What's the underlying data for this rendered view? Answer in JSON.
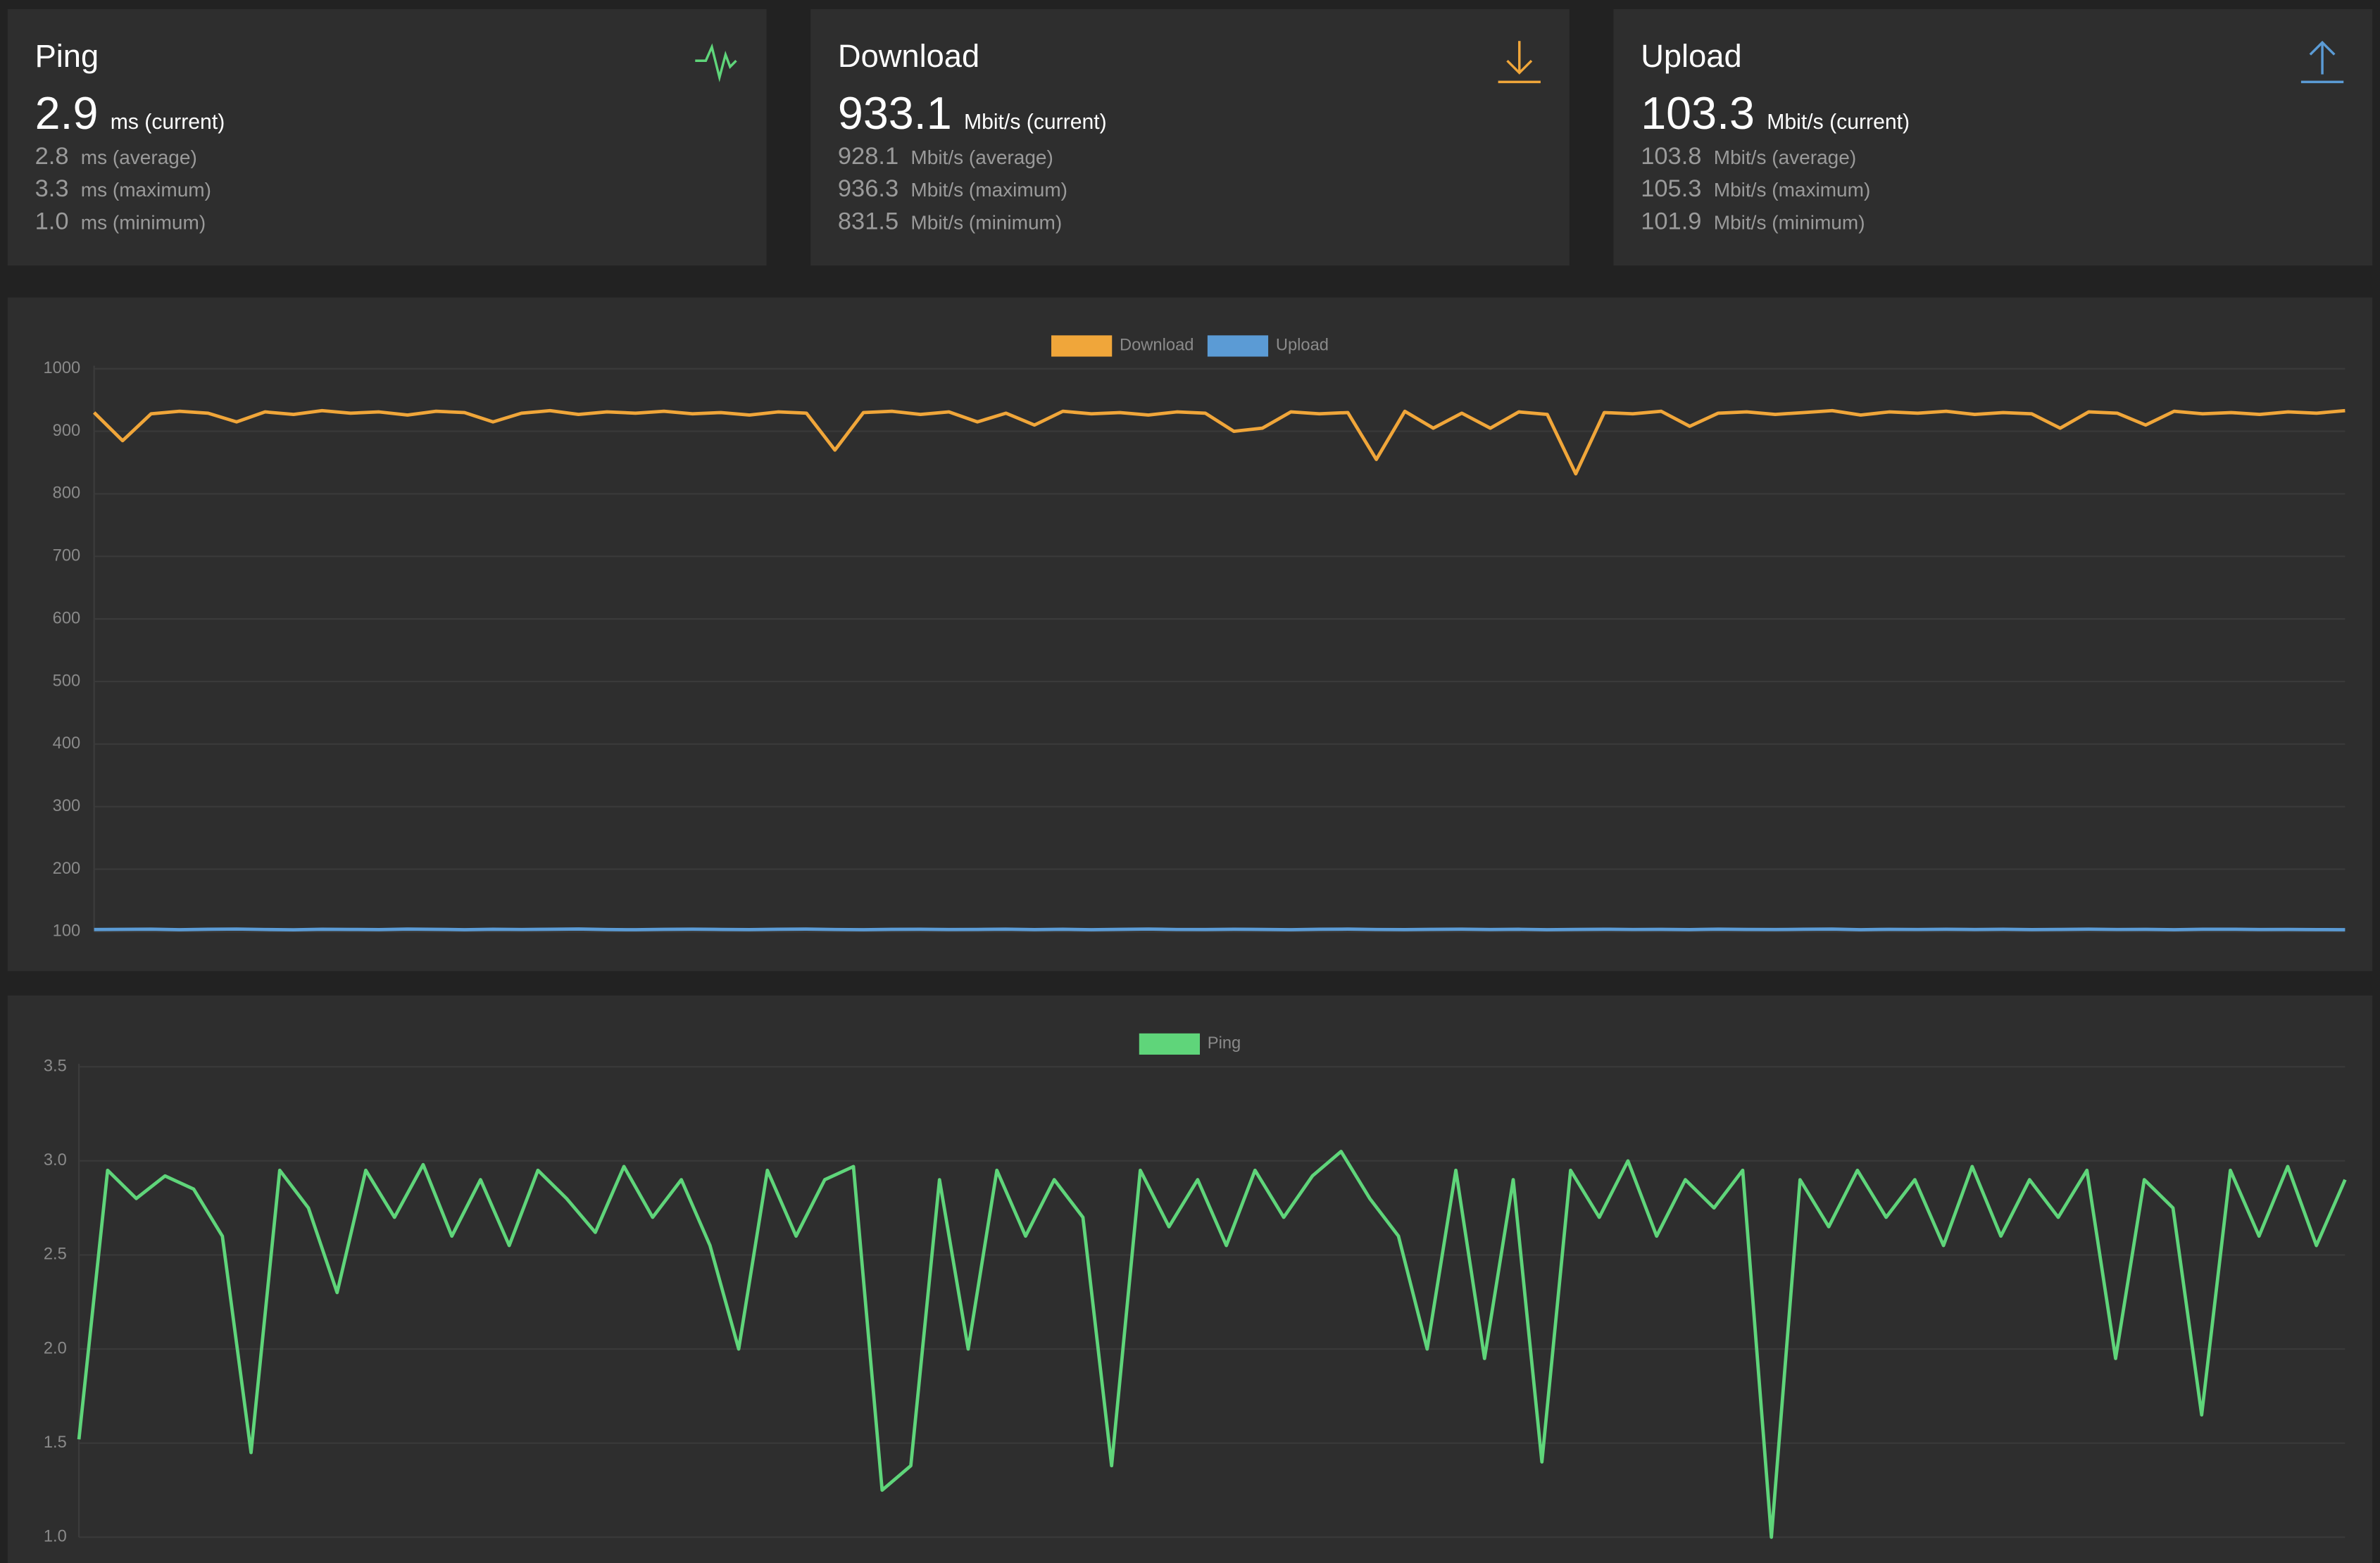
{
  "cards": [
    {
      "title": "Ping",
      "current": {
        "value": "2.9",
        "label": "ms (current)"
      },
      "stats": [
        {
          "value": "2.8",
          "label": "ms (average)"
        },
        {
          "value": "3.3",
          "label": "ms (maximum)"
        },
        {
          "value": "1.0",
          "label": "ms (minimum)"
        }
      ]
    },
    {
      "title": "Download",
      "current": {
        "value": "933.1",
        "label": "Mbit/s (current)"
      },
      "stats": [
        {
          "value": "928.1",
          "label": "Mbit/s (average)"
        },
        {
          "value": "936.3",
          "label": "Mbit/s (maximum)"
        },
        {
          "value": "831.5",
          "label": "Mbit/s (minimum)"
        }
      ]
    },
    {
      "title": "Upload",
      "current": {
        "value": "103.3",
        "label": "Mbit/s (current)"
      },
      "stats": [
        {
          "value": "103.8",
          "label": "Mbit/s (average)"
        },
        {
          "value": "105.3",
          "label": "Mbit/s (maximum)"
        },
        {
          "value": "101.9",
          "label": "Mbit/s (minimum)"
        }
      ]
    }
  ],
  "chart_data": [
    {
      "type": "line",
      "legend": "top",
      "grid": true,
      "ylim": [
        100,
        1000
      ],
      "yticks": [
        100,
        200,
        300,
        400,
        500,
        600,
        700,
        800,
        900,
        1000
      ],
      "series": [
        {
          "name": "Download",
          "color": "#f0a63a",
          "values": [
            930,
            885,
            928,
            932,
            929,
            915,
            931,
            927,
            933,
            929,
            931,
            926,
            932,
            930,
            915,
            929,
            933,
            927,
            931,
            929,
            932,
            928,
            930,
            926,
            931,
            929,
            870,
            930,
            932,
            927,
            931,
            915,
            929,
            910,
            932,
            928,
            930,
            926,
            931,
            929,
            900,
            905,
            931,
            928,
            930,
            855,
            932,
            905,
            929,
            905,
            931,
            927,
            832,
            930,
            928,
            932,
            908,
            929,
            931,
            927,
            930,
            933,
            926,
            931,
            929,
            932,
            927,
            930,
            928,
            905,
            931,
            929,
            910,
            932,
            928,
            930,
            927,
            931,
            929,
            933
          ]
        },
        {
          "name": "Upload",
          "color": "#5b9bd5",
          "values": [
            103.5,
            103.8,
            104.1,
            103.2,
            103.9,
            104.3,
            103.6,
            103.1,
            104.0,
            103.7,
            103.4,
            104.2,
            103.8,
            103.3,
            104.0,
            103.6,
            103.9,
            104.4,
            103.5,
            103.2,
            103.8,
            104.1,
            103.7,
            103.4,
            103.9,
            104.2,
            103.6,
            103.3,
            103.8,
            104.0,
            103.5,
            103.7,
            104.1,
            103.4,
            103.9,
            103.2,
            103.8,
            104.3,
            103.6,
            103.5,
            104.0,
            103.7,
            103.3,
            103.9,
            104.2,
            103.6,
            103.4,
            103.8,
            104.1,
            103.5,
            103.9,
            103.2,
            103.7,
            104.0,
            103.6,
            103.8,
            103.4,
            104.1,
            103.7,
            103.5,
            103.9,
            104.2,
            103.3,
            103.8,
            103.6,
            104.0,
            103.5,
            103.9,
            103.4,
            103.7,
            104.1,
            103.6,
            103.8,
            103.3,
            103.9,
            104.0,
            103.5,
            103.7,
            103.4,
            103.3
          ]
        }
      ]
    },
    {
      "type": "line",
      "legend": "top",
      "grid": true,
      "ylim": [
        1,
        3.5
      ],
      "yticks": [
        {
          "value": 1,
          "label": "1.0"
        },
        1.5,
        {
          "value": 2,
          "label": "2.0"
        },
        2.5,
        {
          "value": 3,
          "label": "3.0"
        },
        3.5
      ],
      "series": [
        {
          "name": "Ping",
          "color": "#5fd57a",
          "values": [
            1.52,
            2.95,
            2.8,
            2.92,
            2.85,
            2.6,
            1.45,
            2.95,
            2.75,
            2.3,
            2.95,
            2.7,
            2.98,
            2.6,
            2.9,
            2.55,
            2.95,
            2.8,
            2.62,
            2.97,
            2.7,
            2.9,
            2.55,
            2.0,
            2.95,
            2.6,
            2.9,
            2.97,
            1.25,
            1.38,
            2.9,
            2.0,
            2.95,
            2.6,
            2.9,
            2.7,
            1.38,
            2.95,
            2.65,
            2.9,
            2.55,
            2.95,
            2.7,
            2.92,
            3.05,
            2.8,
            2.6,
            2.0,
            2.95,
            1.95,
            2.9,
            1.4,
            2.95,
            2.7,
            3.0,
            2.6,
            2.9,
            2.75,
            2.95,
            1.0,
            2.9,
            2.65,
            2.95,
            2.7,
            2.9,
            2.55,
            2.97,
            2.6,
            2.9,
            2.7,
            2.95,
            1.95,
            2.9,
            2.75,
            1.65,
            2.95,
            2.6,
            2.97,
            2.55,
            2.9
          ]
        }
      ]
    }
  ]
}
